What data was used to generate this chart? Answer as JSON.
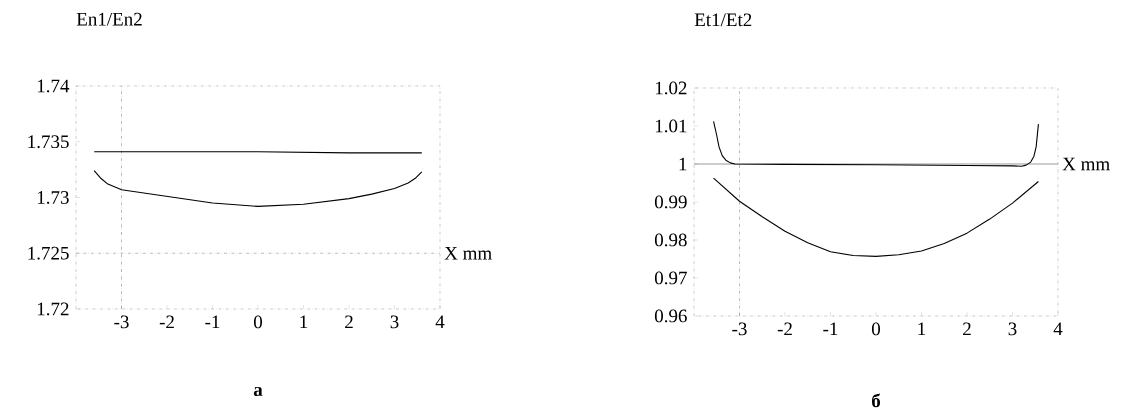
{
  "chart_data": [
    {
      "type": "line",
      "ylabel": "En1/En2",
      "xlabel": "X mm",
      "annotations": [
        "a"
      ],
      "xlim": [
        -4,
        4
      ],
      "xticks": [
        -3,
        -2,
        -1,
        0,
        1,
        2,
        3,
        4
      ],
      "ylim": [
        1.72,
        1.74
      ],
      "yticks": [
        1.72,
        1.725,
        1.73,
        1.735,
        1.74
      ],
      "ref_lines": [
        {
          "axis": "x",
          "value": -3,
          "line_style": "dashdot",
          "color": "#555555"
        },
        {
          "axis": "y",
          "value": 1.725,
          "line_style": "dashdot",
          "color": "#555555"
        }
      ],
      "series": [
        {
          "color": "#000000",
          "x": [
            -3.6,
            -2,
            0,
            2,
            3.6
          ],
          "values": [
            1.7341,
            1.7341,
            1.7341,
            1.734,
            1.734
          ]
        },
        {
          "color": "#000000",
          "x": [
            -3.6,
            -3.45,
            -3.3,
            -3,
            -2.5,
            -2,
            -1,
            0,
            1,
            2,
            2.5,
            3,
            3.3,
            3.45,
            3.6
          ],
          "values": [
            1.7324,
            1.7317,
            1.7312,
            1.7307,
            1.7304,
            1.7301,
            1.7295,
            1.7292,
            1.7294,
            1.7299,
            1.7303,
            1.7308,
            1.7313,
            1.7317,
            1.7323
          ]
        }
      ]
    },
    {
      "type": "line",
      "ylabel": "Et1/Et2",
      "xlabel": "X mm",
      "annotations": [
        "б"
      ],
      "xlim": [
        -4,
        4
      ],
      "xticks": [
        -3,
        -2,
        -1,
        0,
        1,
        2,
        3,
        4
      ],
      "ylim": [
        0.96,
        1.02
      ],
      "yticks": [
        0.96,
        0.97,
        0.98,
        0.99,
        1,
        1.01,
        1.02
      ],
      "ref_lines": [
        {
          "axis": "x",
          "value": -3,
          "line_style": "dashdot",
          "color": "#555555"
        },
        {
          "axis": "y",
          "value": 1,
          "line_style": "solid",
          "color": "#000000"
        }
      ],
      "series": [
        {
          "color": "#000000",
          "x": [
            -3.57,
            -3.5,
            -3.45,
            -3.38,
            -3.3,
            -3.2,
            -3.1,
            -2,
            0,
            2,
            3,
            3.2,
            3.3,
            3.4,
            3.47,
            3.52,
            3.57
          ],
          "values": [
            1.0112,
            1.0075,
            1.0045,
            1.0022,
            1.001,
            1.0003,
            1.0,
            0.9999,
            0.9998,
            0.9996,
            0.9995,
            0.9994,
            0.9997,
            1.0005,
            1.002,
            1.0045,
            1.0105
          ]
        },
        {
          "color": "#000000",
          "x": [
            -3.57,
            -3,
            -2.5,
            -2,
            -1.5,
            -1,
            -0.5,
            0,
            0.5,
            1,
            1.5,
            2,
            2.5,
            3,
            3.57
          ],
          "values": [
            0.9963,
            0.9902,
            0.9861,
            0.9823,
            0.9793,
            0.9769,
            0.9759,
            0.9757,
            0.9761,
            0.9771,
            0.9791,
            0.9818,
            0.9855,
            0.9897,
            0.9954
          ]
        }
      ]
    }
  ]
}
